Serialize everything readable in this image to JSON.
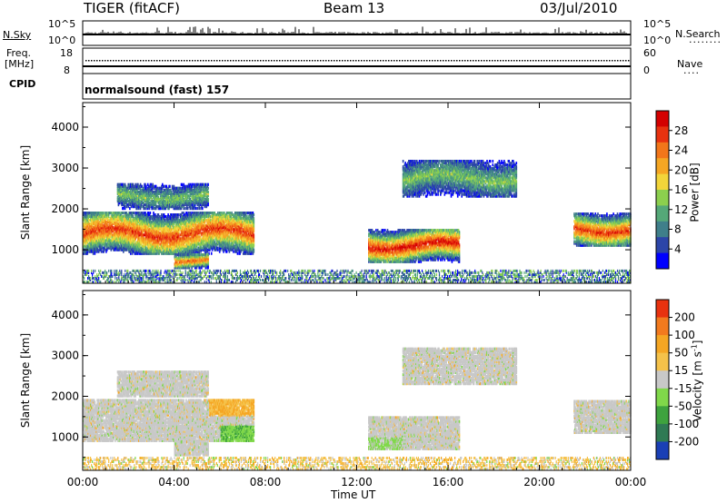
{
  "header": {
    "radar": "TIGER (fitACF)",
    "beam": "Beam 13",
    "date": "03/Jul/2010"
  },
  "summary": {
    "nsky_label": "N.Sky",
    "nsearch_label": "N.Search",
    "n_ticks": [
      "10^5",
      "10^0"
    ],
    "freq_label": "Freq.",
    "freq_unit": "[MHz]",
    "freq_ticks": [
      "18",
      "8"
    ],
    "nave_label": "Nave",
    "nave_ticks": [
      "60",
      "0"
    ],
    "cpid_label": "CPID",
    "cpid_value": "normalsound (fast) 157"
  },
  "chart_data": [
    {
      "type": "heatmap",
      "name": "power",
      "ylabel": "Slant Range [km]",
      "xlabel": "Time UT",
      "xlim": [
        0,
        24
      ],
      "ylim": [
        180,
        4600
      ],
      "yticks": [
        "1000",
        "2000",
        "3000",
        "4000"
      ],
      "colorbar_label": "Power [dB]",
      "colorbar_ticks": [
        "4",
        "8",
        "12",
        "16",
        "20",
        "24",
        "28"
      ],
      "colorbar_colors": [
        "#0000ff",
        "#2c45a8",
        "#3f7f8a",
        "#55a878",
        "#8ccf4e",
        "#f2d53a",
        "#f5a623",
        "#f2761a",
        "#e8320f",
        "#d40000"
      ],
      "echo_regions": [
        {
          "t_start": 0.0,
          "t_end": 7.5,
          "range_low": 900,
          "range_high": 1900,
          "peak_db": 28
        },
        {
          "t_start": 4.0,
          "t_end": 5.5,
          "range_low": 550,
          "range_high": 900,
          "peak_db": 26
        },
        {
          "t_start": 1.5,
          "t_end": 5.5,
          "range_low": 2000,
          "range_high": 2600,
          "peak_db": 14
        },
        {
          "t_start": 12.5,
          "t_end": 16.5,
          "range_low": 700,
          "range_high": 1500,
          "peak_db": 30
        },
        {
          "t_start": 14.0,
          "t_end": 19.0,
          "range_low": 2300,
          "range_high": 3200,
          "peak_db": 14
        },
        {
          "t_start": 21.5,
          "t_end": 24.0,
          "range_low": 1100,
          "range_high": 1900,
          "peak_db": 28
        }
      ]
    },
    {
      "type": "heatmap",
      "name": "velocity",
      "ylabel": "Slant Range [km]",
      "xlabel": "Time UT",
      "xlim": [
        0,
        24
      ],
      "ylim": [
        180,
        4600
      ],
      "xticks": [
        "00:00",
        "04:00",
        "08:00",
        "12:00",
        "16:00",
        "20:00",
        "00:00"
      ],
      "yticks": [
        "1000",
        "2000",
        "3000",
        "4000"
      ],
      "colorbar_label": "Velocity [m s",
      "colorbar_label_sup": "-1",
      "colorbar_ticks": [
        "200",
        "100",
        "50",
        "15",
        "-15",
        "-50",
        "-100",
        "-200"
      ],
      "colorbar_colors": [
        "#1a3fb5",
        "#2f7a54",
        "#3ea33e",
        "#80d84a",
        "#c8c8c8",
        "#f5c24a",
        "#f5a623",
        "#f27a1e",
        "#e8320f"
      ]
    }
  ]
}
